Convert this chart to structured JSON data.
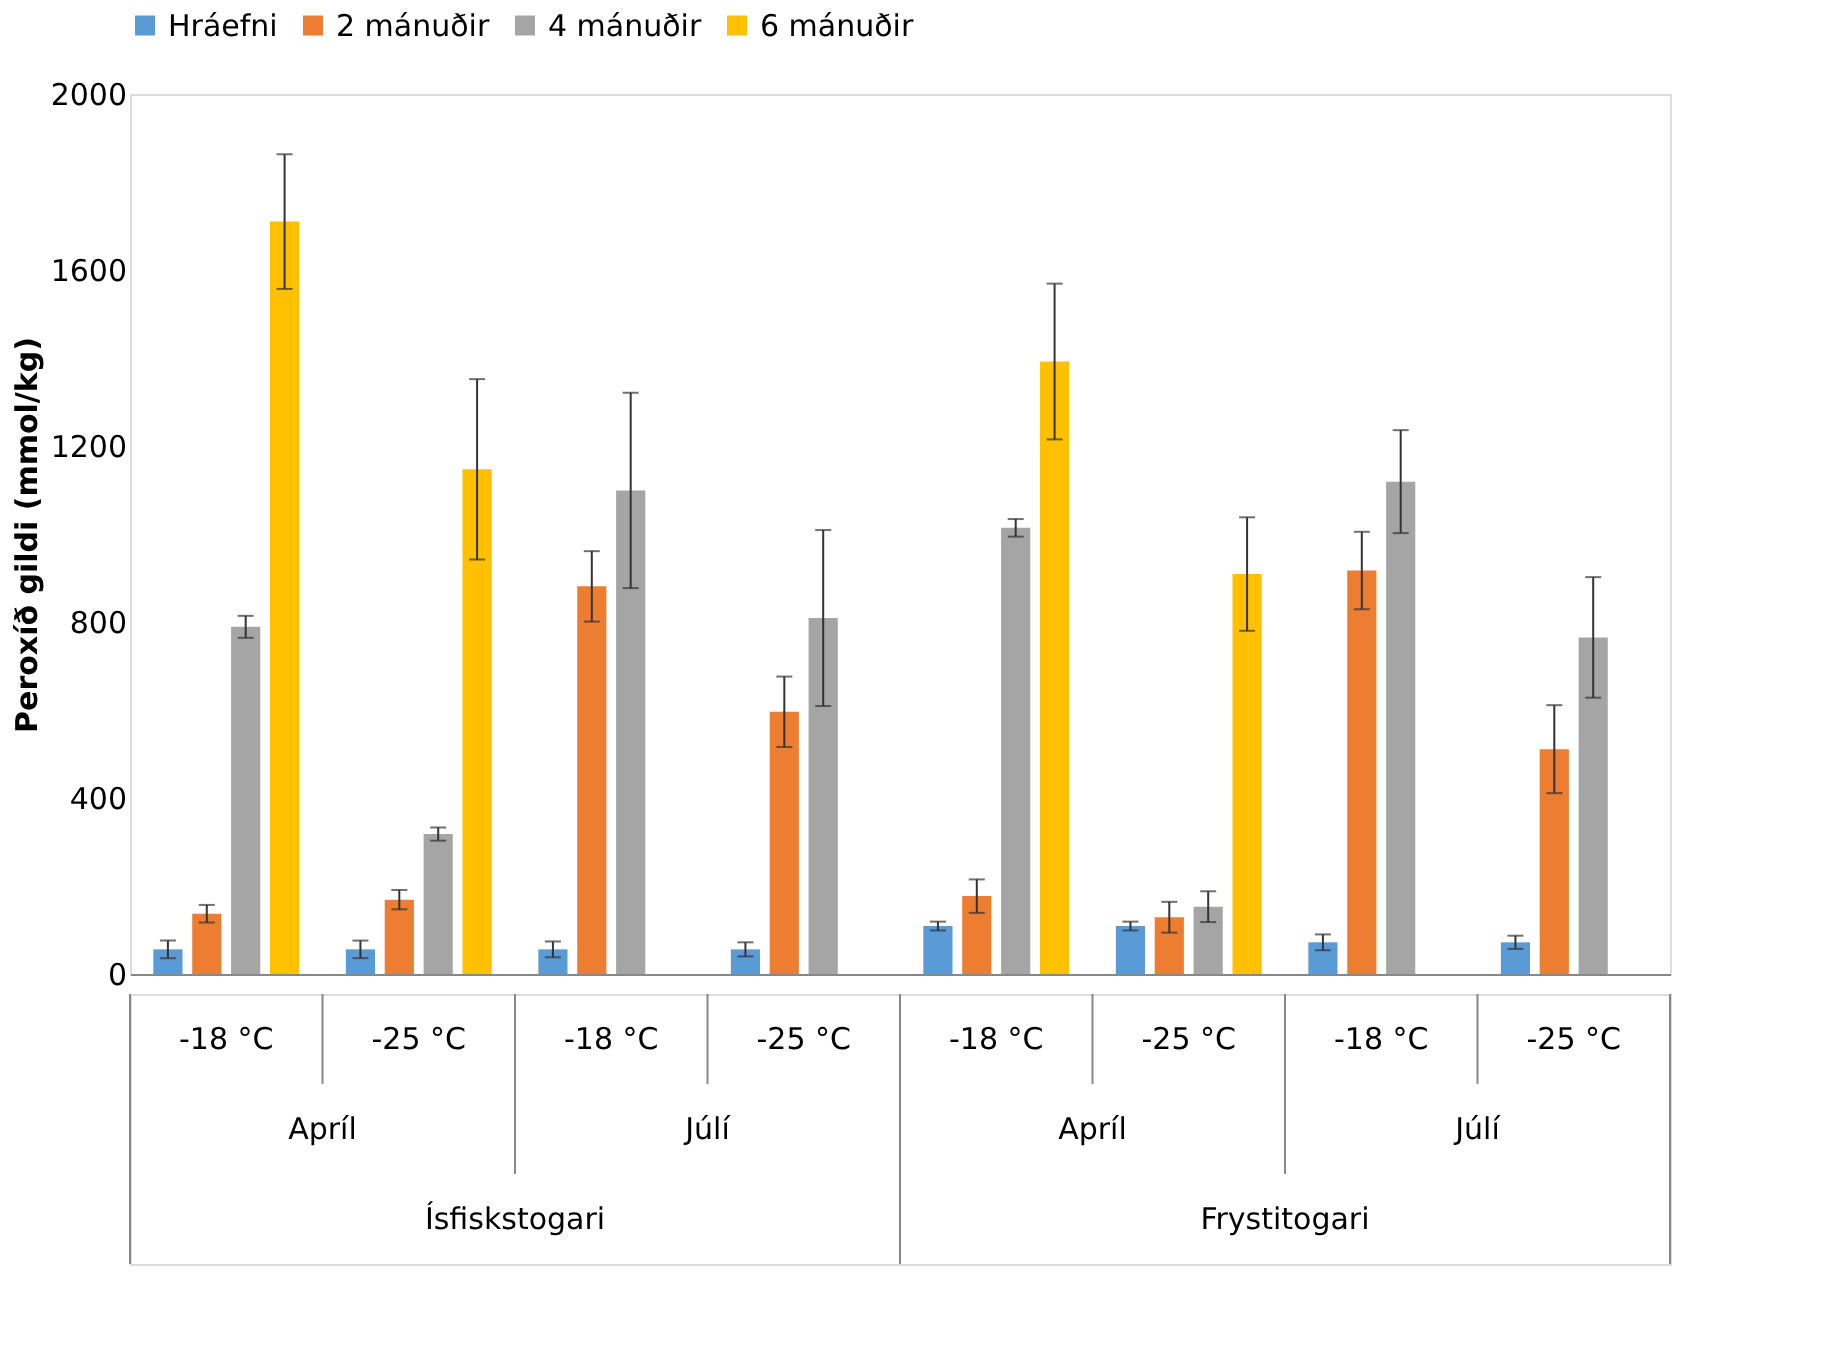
{
  "chart_data": {
    "type": "bar",
    "ylabel": "Peroxíð gildi (mmol/kg)",
    "categories": [
      "-18 °C",
      "-25 °C",
      "-18 °C",
      "-25 °C",
      "-18 °C",
      "-25 °C",
      "-18 °C",
      "-25 °C"
    ],
    "annotations": [
      "Apríl",
      "Júlí",
      "Apríl",
      "Júlí",
      "Ísfiskstogari",
      "Frystitogari"
    ],
    "series": [
      {
        "name": "Hráefni",
        "color": "#5b9bd5",
        "values": [
          56,
          56,
          56,
          56,
          109,
          109,
          72,
          72
        ],
        "errors": [
          20,
          20,
          18,
          16,
          10,
          10,
          18,
          15
        ]
      },
      {
        "name": "2 mánuðir",
        "color": "#ed7d31",
        "values": [
          137,
          169,
          881,
          596,
          177,
          129,
          917,
          511
        ],
        "errors": [
          20,
          22,
          80,
          80,
          38,
          35,
          88,
          100
        ]
      },
      {
        "name": "4 mánuðir",
        "color": "#a5a5a5",
        "values": [
          789,
          318,
          1099,
          809,
          1014,
          153,
          1119,
          765
        ],
        "errors": [
          25,
          15,
          222,
          200,
          20,
          35,
          117,
          137
        ]
      },
      {
        "name": "6 mánuðir",
        "color": "#ffc000",
        "values": [
          1710,
          1147,
          null,
          null,
          1392,
          909,
          null,
          null
        ],
        "errors": [
          153,
          205,
          null,
          null,
          177,
          129,
          null,
          null
        ]
      }
    ],
    "ylim": [
      0,
      2000
    ],
    "yticks": [
      0,
      400,
      800,
      1200,
      1600,
      2000
    ],
    "grid": false,
    "legend": "top"
  }
}
